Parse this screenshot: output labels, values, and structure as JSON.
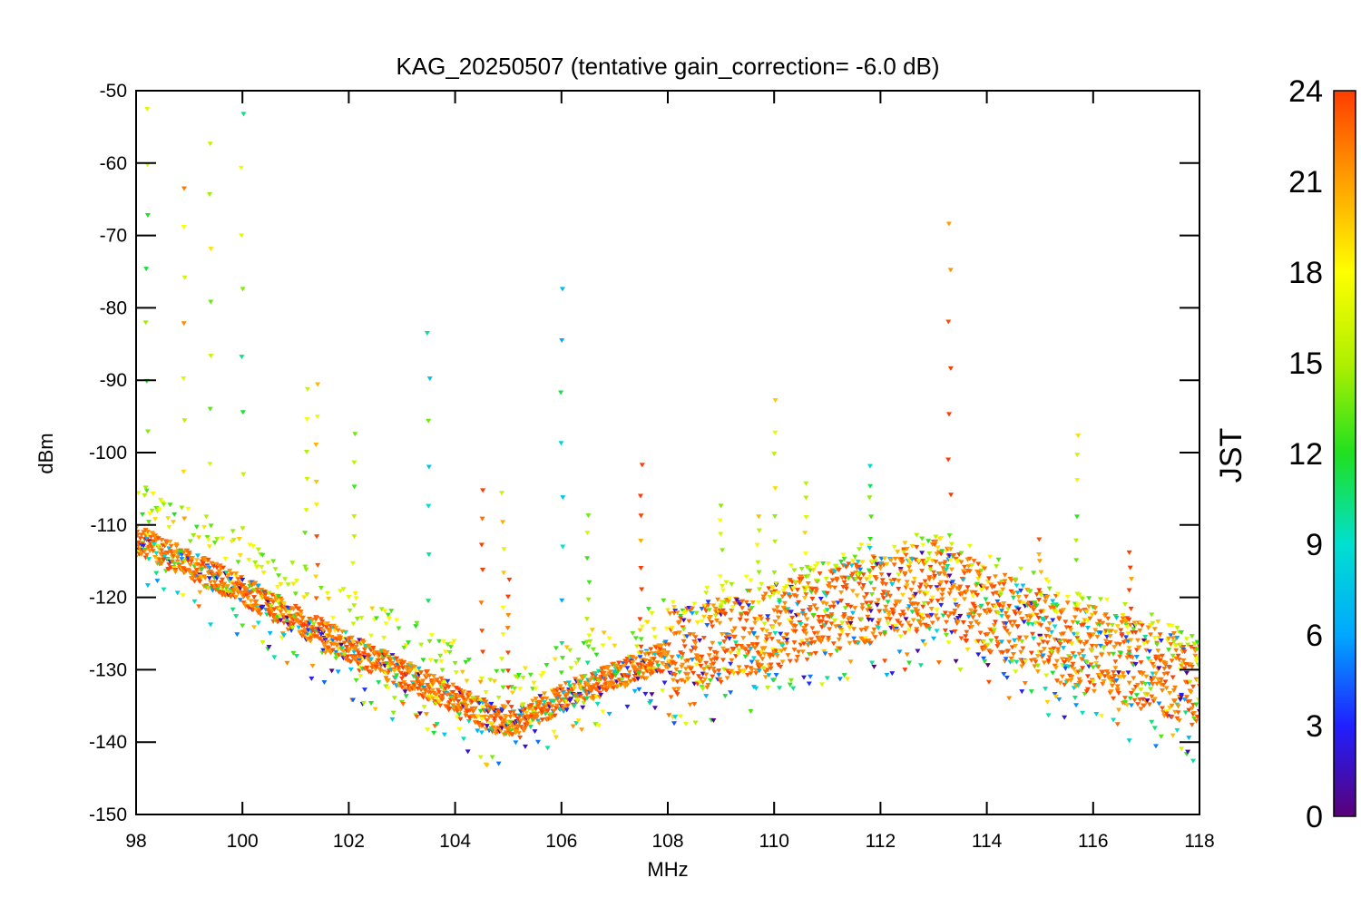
{
  "chart_data": {
    "type": "scatter",
    "title": "KAG_20250507 (tentative gain_correction= -6.0 dB)",
    "xlabel": "MHz",
    "ylabel": "dBm",
    "xlim": [
      98,
      118
    ],
    "ylim": [
      -150,
      -50
    ],
    "x_ticks": [
      "98",
      "100",
      "102",
      "104",
      "106",
      "108",
      "110",
      "112",
      "114",
      "116",
      "118"
    ],
    "y_ticks": [
      "-50",
      "-60",
      "-70",
      "-80",
      "-90",
      "-100",
      "-110",
      "-120",
      "-130",
      "-140",
      "-150"
    ],
    "grid": false,
    "colorbar": {
      "label": "JST",
      "range": [
        0,
        24
      ],
      "ticks": [
        "24",
        "21",
        "18",
        "15",
        "12",
        "9",
        "6",
        "3",
        "0"
      ],
      "colormap": [
        "#5a0078",
        "#2020ff",
        "#00a8ff",
        "#00e0d0",
        "#20e020",
        "#b0f000",
        "#ffff00",
        "#ffa000",
        "#ff3c00"
      ]
    },
    "noise_floor": [
      {
        "mhz": 98.0,
        "dbm": -112
      },
      {
        "mhz": 100.0,
        "dbm": -119
      },
      {
        "mhz": 102.0,
        "dbm": -127
      },
      {
        "mhz": 104.0,
        "dbm": -134
      },
      {
        "mhz": 104.8,
        "dbm": -137
      },
      {
        "mhz": 105.2,
        "dbm": -137
      },
      {
        "mhz": 106.0,
        "dbm": -134
      },
      {
        "mhz": 108.0,
        "dbm": -128
      },
      {
        "mhz": 110.0,
        "dbm": -124
      },
      {
        "mhz": 113.0,
        "dbm": -118
      },
      {
        "mhz": 115.0,
        "dbm": -125
      },
      {
        "mhz": 118.0,
        "dbm": -132
      }
    ],
    "signals": [
      {
        "mhz": 98.2,
        "peak_dbm": -52,
        "hour": 15
      },
      {
        "mhz": 98.9,
        "peak_dbm": -63,
        "hour": 19
      },
      {
        "mhz": 99.4,
        "peak_dbm": -57,
        "hour": 17
      },
      {
        "mhz": 100.0,
        "peak_dbm": -53,
        "hour": 14
      },
      {
        "mhz": 101.2,
        "peak_dbm": -91,
        "hour": 16
      },
      {
        "mhz": 101.4,
        "peak_dbm": -91,
        "hour": 20
      },
      {
        "mhz": 102.1,
        "peak_dbm": -97,
        "hour": 15
      },
      {
        "mhz": 103.5,
        "peak_dbm": -83,
        "hour": 10
      },
      {
        "mhz": 104.5,
        "peak_dbm": -105,
        "hour": 24
      },
      {
        "mhz": 104.9,
        "peak_dbm": -105,
        "hour": 17
      },
      {
        "mhz": 105.0,
        "peak_dbm": -117,
        "hour": 24
      },
      {
        "mhz": 106.0,
        "peak_dbm": -77,
        "hour": 10
      },
      {
        "mhz": 106.5,
        "peak_dbm": -108,
        "hour": 13
      },
      {
        "mhz": 107.5,
        "peak_dbm": -102,
        "hour": 24
      },
      {
        "mhz": 109.0,
        "peak_dbm": -107,
        "hour": 18
      },
      {
        "mhz": 109.7,
        "peak_dbm": -109,
        "hour": 17
      },
      {
        "mhz": 110.0,
        "peak_dbm": -93,
        "hour": 16
      },
      {
        "mhz": 110.6,
        "peak_dbm": -104,
        "hour": 16
      },
      {
        "mhz": 111.8,
        "peak_dbm": -102,
        "hour": 11
      },
      {
        "mhz": 113.3,
        "peak_dbm": -69,
        "hour": 24
      },
      {
        "mhz": 115.0,
        "peak_dbm": -112,
        "hour": 24
      },
      {
        "mhz": 115.7,
        "peak_dbm": -97,
        "hour": 16
      },
      {
        "mhz": 116.7,
        "peak_dbm": -114,
        "hour": 24
      }
    ]
  }
}
